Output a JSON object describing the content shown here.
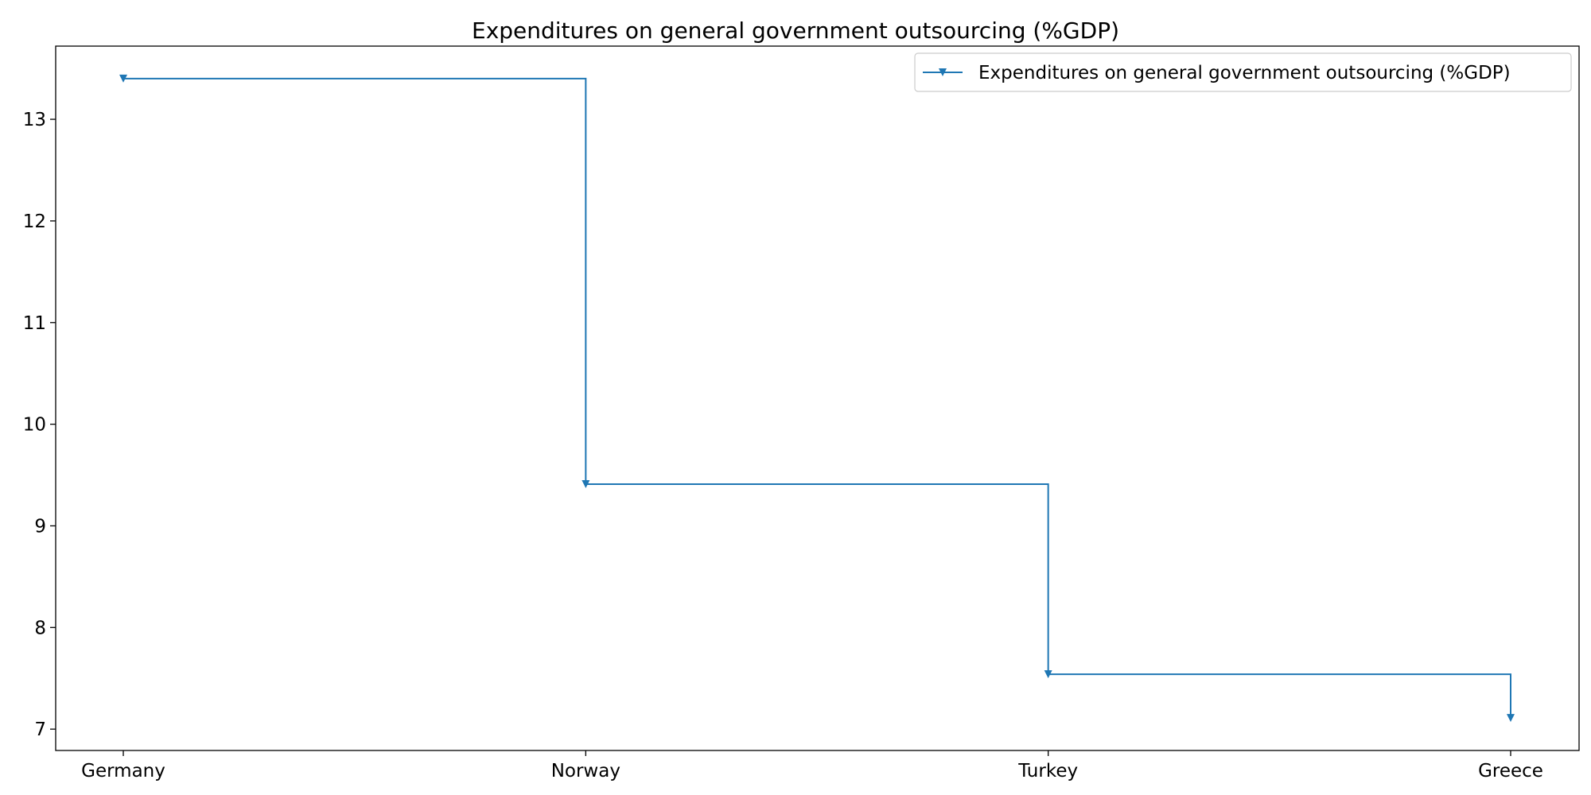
{
  "chart_data": {
    "type": "line",
    "step": "post",
    "marker": "triangle-down",
    "title": "Expenditures on general government outsourcing (%GDP)",
    "xlabel": "",
    "ylabel": "",
    "categories": [
      "Germany",
      "Norway",
      "Turkey",
      "Greece"
    ],
    "series": [
      {
        "name": "Expenditures on general government outsourcing (%GDP)",
        "values": [
          13.4,
          9.41,
          7.54,
          7.11
        ],
        "color": "#1f77b4"
      }
    ],
    "ylim": [
      6.79,
      13.72
    ],
    "yticks": [
      "7",
      "8",
      "9",
      "10",
      "11",
      "12",
      "13"
    ],
    "grid": false,
    "legend_position": "top-right"
  }
}
